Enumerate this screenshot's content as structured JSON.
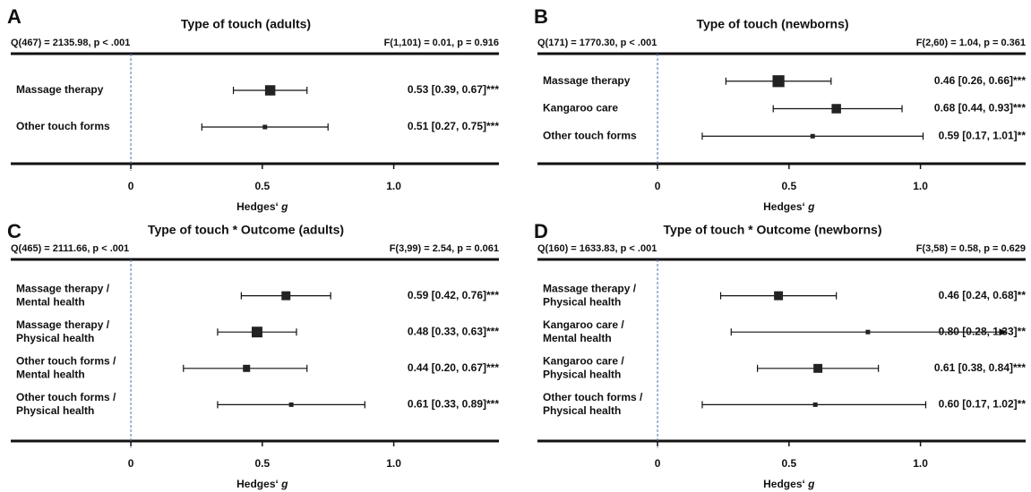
{
  "chart_data": [
    {
      "type": "forest",
      "panel": "A",
      "title": "Type of touch (adults)",
      "heterogeneity": "Q(467) = 2135.98, p < .001",
      "moderator_test": "F(1,101) = 0.01, p = 0.916",
      "xlim": [
        -0.45,
        1.4
      ],
      "xticks": [
        0,
        0.5,
        {
          "value": 1,
          "label": "1.0"
        }
      ],
      "x_label": "Hedges‘",
      "x_label_symbol": "g",
      "rows": [
        {
          "label": [
            "Massage therapy"
          ],
          "color": "#222222",
          "value": 0.53,
          "lower": 0.39,
          "upper": 0.67,
          "value_label": "0.53 [0.39, 0.67]***",
          "weight": 10
        },
        {
          "label": [
            "Other touch forms"
          ],
          "color": "#222222",
          "value": 0.51,
          "lower": 0.27,
          "upper": 0.75,
          "value_label": "0.51 [0.27, 0.75]***",
          "weight": 1
        }
      ]
    },
    {
      "type": "forest",
      "panel": "B",
      "title": "Type of touch (newborns)",
      "heterogeneity": "Q(171) = 1770.30, p < .001",
      "moderator_test": "F(2,60) = 1.04, p = 0.361",
      "xlim": [
        -0.45,
        1.4
      ],
      "xticks": [
        0,
        0.5,
        {
          "value": 1,
          "label": "1.0"
        }
      ],
      "x_label": "Hedges‘",
      "x_label_symbol": "g",
      "rows": [
        {
          "label": [
            "Massage therapy"
          ],
          "color": "#222222",
          "value": 0.46,
          "lower": 0.26,
          "upper": 0.66,
          "value_label": "0.46 [0.26, 0.66]***",
          "weight": 14
        },
        {
          "label": [
            "Kangaroo care"
          ],
          "color": "#222222",
          "value": 0.68,
          "lower": 0.44,
          "upper": 0.93,
          "value_label": "0.68 [0.44, 0.93]***",
          "weight": 8
        },
        {
          "label": [
            "Other touch forms"
          ],
          "color": "#222222",
          "value": 0.59,
          "lower": 0.17,
          "upper": 1.01,
          "value_label": "0.59 [0.17, 1.01]**",
          "weight": 1
        }
      ]
    },
    {
      "type": "forest",
      "panel": "C",
      "title": "Type of touch * Outcome (adults)",
      "heterogeneity": "Q(465) = 2111.66, p < .001",
      "moderator_test": "F(3,99) = 2.54, p = 0.061",
      "xlim": [
        -0.45,
        1.4
      ],
      "xticks": [
        0,
        0.5,
        {
          "value": 1,
          "label": "1.0"
        }
      ],
      "x_label": "Hedges‘",
      "x_label_symbol": "g",
      "rows": [
        {
          "label": [
            "Massage therapy /",
            "Mental health"
          ],
          "color": "#4a72b0",
          "value": 0.59,
          "lower": 0.42,
          "upper": 0.76,
          "value_label": "0.59 [0.42, 0.76]***",
          "weight": 7
        },
        {
          "label": [
            "Massage therapy /",
            "Physical health"
          ],
          "color": "#c0502a",
          "value": 0.48,
          "lower": 0.33,
          "upper": 0.63,
          "value_label": "0.48 [0.33, 0.63]***",
          "weight": 11
        },
        {
          "label": [
            "Other touch forms /",
            "Mental health"
          ],
          "color": "#4a72b0",
          "value": 0.44,
          "lower": 0.2,
          "upper": 0.67,
          "value_label": "0.44 [0.20, 0.67]***",
          "weight": 4
        },
        {
          "label": [
            "Other touch forms /",
            "Physical health"
          ],
          "color": "#c0502a",
          "value": 0.61,
          "lower": 0.33,
          "upper": 0.89,
          "value_label": "0.61 [0.33, 0.89]***",
          "weight": 1
        }
      ]
    },
    {
      "type": "forest",
      "panel": "D",
      "title": "Type of touch * Outcome (newborns)",
      "heterogeneity": "Q(160) = 1633.83, p < .001",
      "moderator_test": "F(3,58) = 0.58, p = 0.629",
      "xlim": [
        -0.45,
        1.4
      ],
      "xticks": [
        0,
        0.5,
        {
          "value": 1,
          "label": "1.0"
        }
      ],
      "x_label": "Hedges‘",
      "x_label_symbol": "g",
      "rows": [
        {
          "label": [
            "Massage therapy /",
            "Physical health"
          ],
          "color": "#c0502a",
          "value": 0.46,
          "lower": 0.24,
          "upper": 0.68,
          "value_label": "0.46 [0.24, 0.68]**",
          "weight": 7
        },
        {
          "label": [
            "Kangaroo care /",
            "Mental health"
          ],
          "color": "#4a72b0",
          "value": 0.8,
          "lower": 0.28,
          "upper": 1.33,
          "value_label": "0.80 [0.28, 1.33]**",
          "weight": 1,
          "arrow": true
        },
        {
          "label": [
            "Kangaroo care /",
            "Physical health"
          ],
          "color": "#c0502a",
          "value": 0.61,
          "lower": 0.38,
          "upper": 0.84,
          "value_label": "0.61 [0.38, 0.84]***",
          "weight": 7
        },
        {
          "label": [
            "Other touch forms /",
            "Physical health"
          ],
          "color": "#c0502a",
          "value": 0.6,
          "lower": 0.17,
          "upper": 1.02,
          "value_label": "0.60 [0.17, 1.02]**",
          "weight": 1
        }
      ]
    }
  ]
}
